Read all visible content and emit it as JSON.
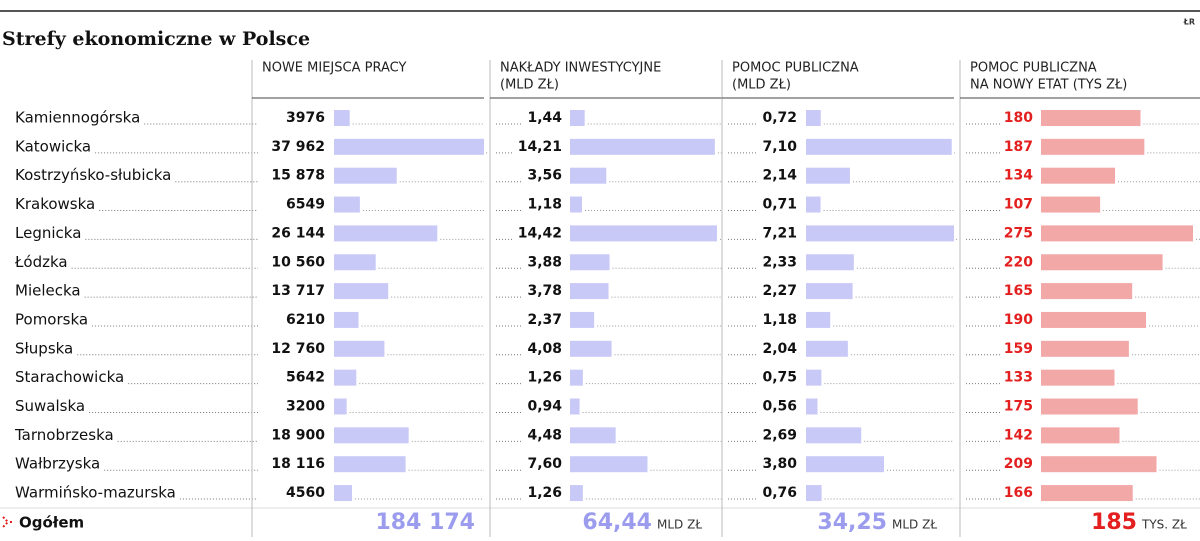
{
  "title": "Strefy ekonomiczne w Polsce",
  "source": "ŁR",
  "categories": [
    "Kamiennogórska",
    "Katowicka",
    "Kostrzyńsko-słubicka",
    "Krakowska",
    "Legnicka",
    "Łódzka",
    "Mielecka",
    "Pomorska",
    "Słupska",
    "Starachowicka",
    "Suwalska",
    "Tarnobrzeska",
    "Wałbrzyska",
    "Warmińsko-mazurska"
  ],
  "total_name": "Ogółem",
  "columns": [
    {
      "header": [
        "NOWE MIEJSCA PRACY"
      ],
      "color": "#c9c9f7",
      "value_color": "#111111",
      "total_color": "#9c9cee",
      "values": [
        3976,
        37962,
        15878,
        6549,
        26144,
        10560,
        13717,
        6210,
        12760,
        5642,
        3200,
        18900,
        18116,
        4560
      ],
      "value_labels": [
        "3976",
        "37 962",
        "15 878",
        "6549",
        "26 144",
        "10 560",
        "13 717",
        "6210",
        "12 760",
        "5642",
        "3200",
        "18 900",
        "18 116",
        "4560"
      ],
      "total": 184174,
      "total_label": "184 174"
    },
    {
      "header": [
        "NAKŁADY INWESTYCYJNE",
        "(MLD ZŁ)"
      ],
      "color": "#c9c9f7",
      "value_color": "#111111",
      "total_color": "#9c9cee",
      "values": [
        1.44,
        14.21,
        3.56,
        1.18,
        14.42,
        3.88,
        3.78,
        2.37,
        4.08,
        1.26,
        0.94,
        4.48,
        7.6,
        1.26
      ],
      "value_labels": [
        "1,44",
        "14,21",
        "3,56",
        "1,18",
        "14,42",
        "3,88",
        "3,78",
        "2,37",
        "4,08",
        "1,26",
        "0,94",
        "4,48",
        "7,60",
        "1,26"
      ],
      "total": 64.44,
      "total_label": "64,44",
      "total_unit": "MLD ZŁ"
    },
    {
      "header": [
        "POMOC PUBLICZNA",
        "(MLD ZŁ)"
      ],
      "color": "#c9c9f7",
      "value_color": "#111111",
      "total_color": "#9c9cee",
      "values": [
        0.72,
        7.1,
        2.14,
        0.71,
        7.21,
        2.33,
        2.27,
        1.18,
        2.04,
        0.75,
        0.56,
        2.69,
        3.8,
        0.76
      ],
      "value_labels": [
        "0,72",
        "7,10",
        "2,14",
        "0,71",
        "7,21",
        "2,33",
        "2,27",
        "1,18",
        "2,04",
        "0,75",
        "0,56",
        "2,69",
        "3,80",
        "0,76"
      ],
      "total": 34.25,
      "total_label": "34,25",
      "total_unit": "MLD ZŁ"
    },
    {
      "header": [
        "POMOC PUBLICZNA",
        "NA NOWY ETAT (TYS ZŁ)"
      ],
      "color": "#f3a8a8",
      "value_color": "#e3201f",
      "total_color": "#e3201f",
      "values": [
        180,
        187,
        134,
        107,
        275,
        220,
        165,
        190,
        159,
        133,
        175,
        142,
        209,
        166
      ],
      "total": 185,
      "total_unit": "TYS. ZŁ"
    }
  ]
}
